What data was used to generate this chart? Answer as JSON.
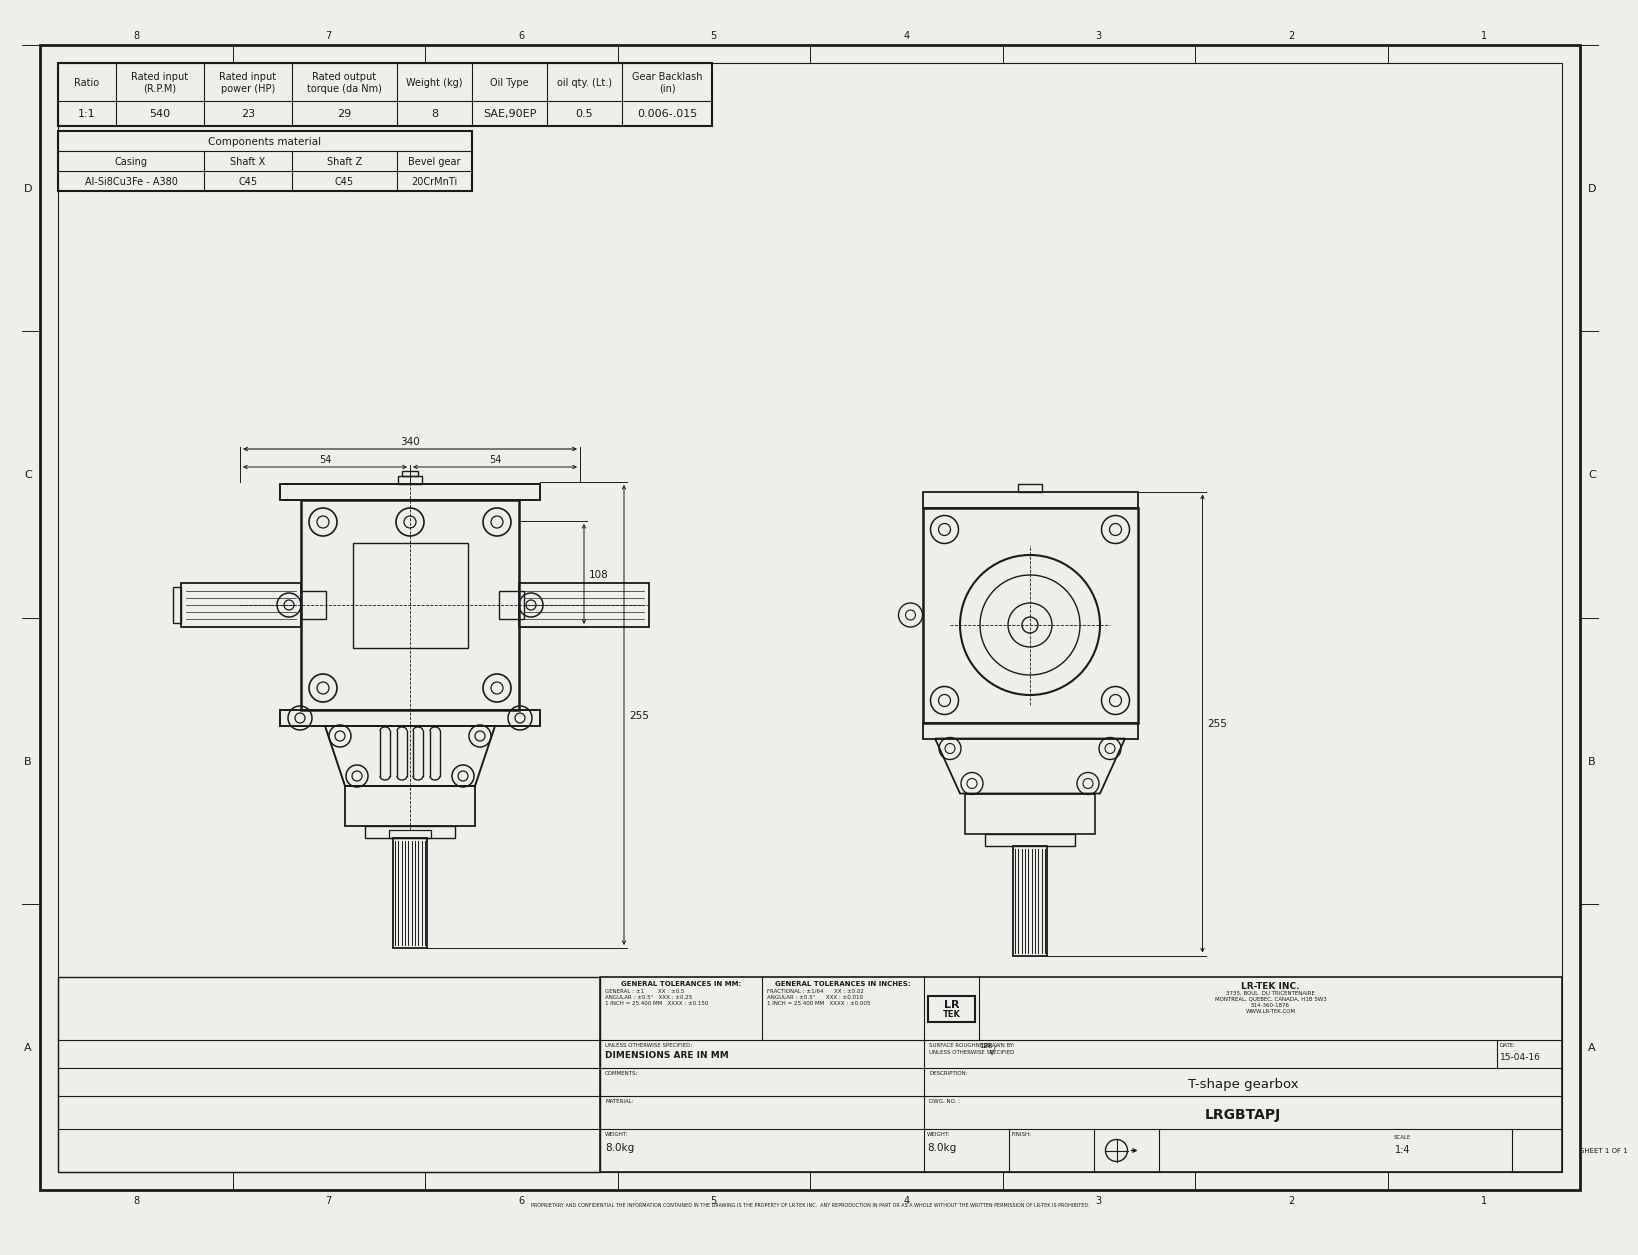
{
  "bg_color": "#f0eeea",
  "line_color": "#1a1a1a",
  "title": "T-shape gearbox",
  "dwg_no": "LRGBTAPJ",
  "date": "15-04-16",
  "scale": "1:4",
  "sheet": "SHEET 1 OF 1",
  "weight": "8.0kg",
  "company": "LR-TEK INC.",
  "description": "T-shape gearbox",
  "table1_headers": [
    "Ratio",
    "Rated input\n(R.P.M)",
    "Rated input\npower (HP)",
    "Rated output\ntorque (da Nm)",
    "Weight (kg)",
    "Oil Type",
    "oil qty. (Lt.)",
    "Gear Backlash\n(in)"
  ],
  "table1_values": [
    "1:1",
    "540",
    "23",
    "29",
    "8",
    "SAE,90EP",
    "0.5",
    "0.006-.015"
  ],
  "table2_headers": [
    "Casing",
    "Shaft X",
    "Shaft Z",
    "Bevel gear"
  ],
  "table2_values": [
    "Al-Si8Cu3Fe - A380",
    "C45",
    "C45",
    "20CrMnTi"
  ],
  "table2_title": "Components material",
  "dim_340": "340",
  "dim_54a": "54",
  "dim_54b": "54",
  "dim_108": "108",
  "dim_255": "255",
  "border_numbers": [
    "8",
    "7",
    "6",
    "5",
    "4",
    "3",
    "2",
    "1"
  ],
  "border_letters": [
    "D",
    "C",
    "B",
    "A"
  ],
  "tolerances_mm_title": "GENERAL TOLERANCES IN MM:",
  "tolerances_in_title": "GENERAL TOLERANCES IN INCHES:",
  "unless_specified": "UNLESS OTHERWISE SPECIFIED:",
  "dim_in_mm": "DIMENSIONS ARE IN MM",
  "surface_roughness": "SURFACE ROUGHNESS",
  "surface_val": "128",
  "comments_label": "COMMENTS:",
  "material_label": "MATERIAL:",
  "finish_label": "FINISH:",
  "weight_label": "WEIGHT:",
  "drawn_by_label": "DRAWN BY:",
  "description_label": "DESCRIPTION:",
  "dwg_no_label": "DWG. NO. :",
  "copyright": "PROPRIETARY AND CONFIDENTIAL THE INFORMATION CONTAINED IN THE DRAWING IS THE PROPERTY OF LR-TEK INC.  ANY REPRODUCTION IN PART OR AS A WHOLE WITHOUT THE WRITTEN PERMISSION OF LR-TEK IS PROHIBITED."
}
